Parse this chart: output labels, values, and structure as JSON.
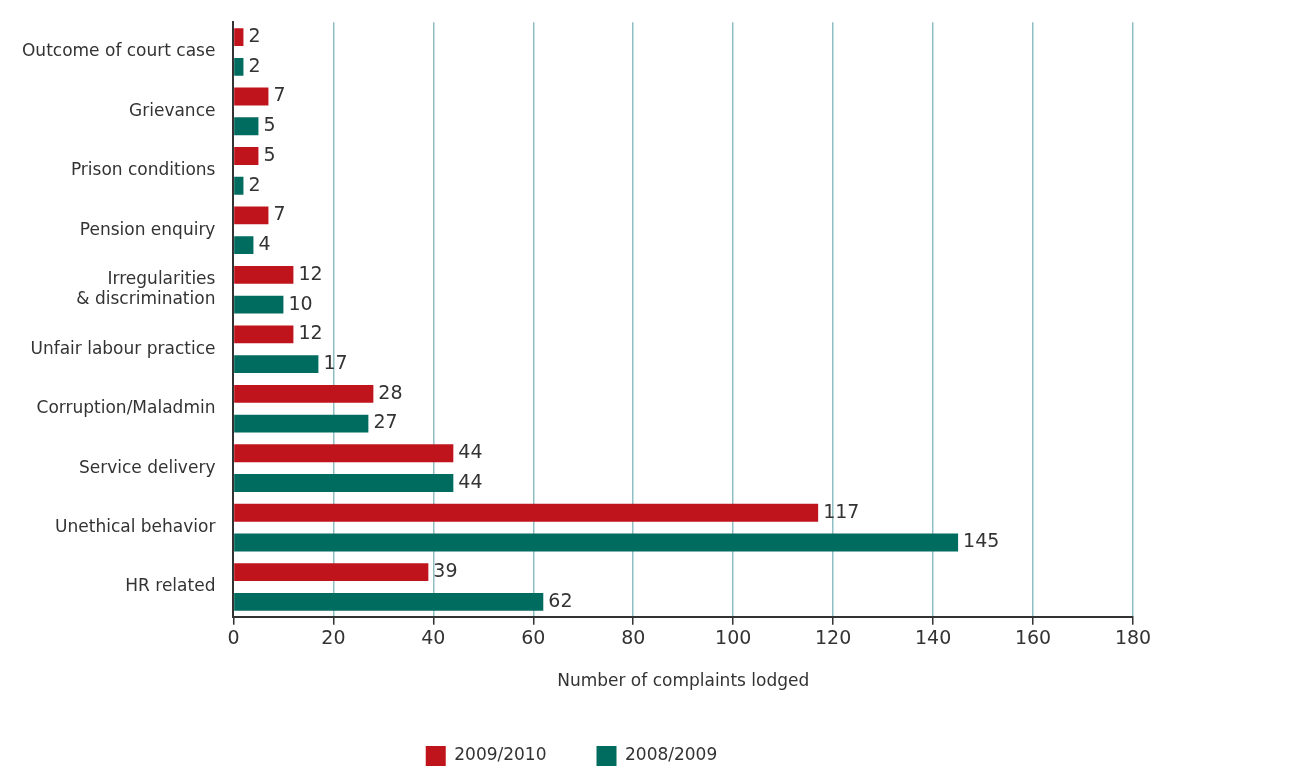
{
  "chart_data": {
    "type": "bar",
    "orientation": "horizontal",
    "xlabel": "Number of complaints lodged",
    "categories": [
      "Outcome of court case",
      "Grievance",
      "Prison conditions",
      "Pension enquiry",
      "Irregularities & discrimination",
      "Unfair labour practice",
      "Corruption/Maladmin",
      "Service delivery",
      "Unethical behavior",
      "HR related"
    ],
    "series": [
      {
        "name": "2009/2010",
        "color": "#c0141c",
        "values": [
          2,
          7,
          5,
          7,
          12,
          12,
          28,
          44,
          117,
          39
        ]
      },
      {
        "name": "2008/2009",
        "color": "#006b5f",
        "values": [
          2,
          5,
          2,
          4,
          10,
          17,
          27,
          44,
          145,
          62
        ]
      }
    ],
    "xlim": [
      0,
      180
    ],
    "xticks": [
      0,
      20,
      40,
      60,
      80,
      100,
      120,
      140,
      160,
      180
    ],
    "grid": "x",
    "legend": "bottom",
    "data_labels": true
  }
}
